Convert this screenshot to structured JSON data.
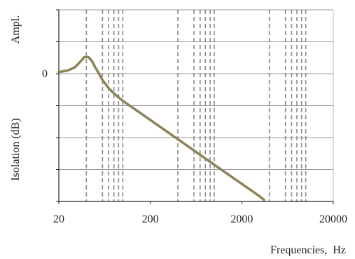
{
  "chart_data": {
    "type": "line",
    "title": "",
    "xlabel": "Frequencies,  Hz",
    "ylabel_top": "Ampl.",
    "ylabel_bottom": "Isolation (dB)",
    "x_scale": "log",
    "xlim": [
      20,
      20000
    ],
    "x_ticks": [
      20,
      200,
      2000,
      20000
    ],
    "x_tick_labels": [
      "20",
      "200",
      "2000",
      "20000"
    ],
    "y_tick_labels": [
      {
        "value": 0,
        "label": "0"
      }
    ],
    "ylim": [
      -4,
      2
    ],
    "y_gridlines": [
      -4,
      -3,
      -2,
      -1,
      0,
      1,
      2
    ],
    "vertical_dashed_gridlines": [
      40,
      60,
      70,
      80,
      90,
      100,
      400,
      600,
      700,
      800,
      900,
      1000,
      4000,
      6000,
      7000,
      8000,
      9000,
      10000
    ],
    "grid": true,
    "legend": "none",
    "line_color": "#8c8257",
    "series": [
      {
        "x": [
          20,
          25,
          30,
          35,
          38,
          42,
          46,
          50,
          55,
          60,
          70,
          80,
          100,
          150,
          200,
          400,
          1000,
          2000,
          3000,
          3500
        ],
        "y": [
          0.05,
          0.1,
          0.2,
          0.4,
          0.52,
          0.52,
          0.4,
          0.2,
          0.0,
          -0.2,
          -0.45,
          -0.62,
          -0.85,
          -1.2,
          -1.45,
          -2.05,
          -2.85,
          -3.45,
          -3.8,
          -3.95
        ]
      }
    ]
  }
}
